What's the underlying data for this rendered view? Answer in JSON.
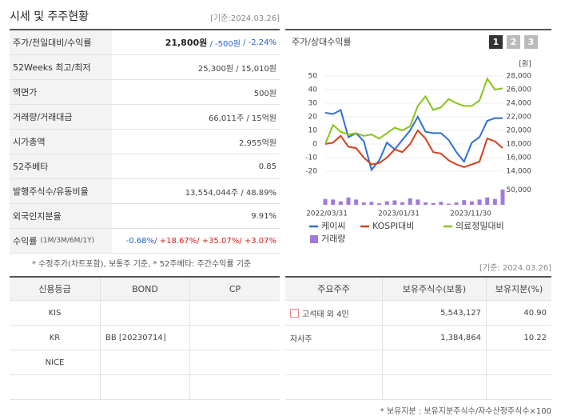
{
  "header": {
    "title": "시세 및 주주현황",
    "date": "[기준:2024.03.26]"
  },
  "price_table": {
    "rows": [
      {
        "label": "주가/전일대비/수익률",
        "parts": [
          {
            "text": "21,800원",
            "color": "#222222",
            "bold": true
          },
          {
            "text": " / -500원",
            "color": "#2460c8"
          },
          {
            "text": " / -2.24%",
            "color": "#2460c8"
          }
        ]
      },
      {
        "label": "52Weeks 최고/최저",
        "parts": [
          {
            "text": "25,300원 / 15,010원",
            "color": "#444444"
          }
        ]
      },
      {
        "label": "액면가",
        "parts": [
          {
            "text": "500원",
            "color": "#444444"
          }
        ]
      },
      {
        "label": "거래량/거래대금",
        "parts": [
          {
            "text": "66,011주 / 15억원",
            "color": "#444444"
          }
        ]
      },
      {
        "label": "시가총액",
        "parts": [
          {
            "text": "2,955억원",
            "color": "#444444"
          }
        ]
      },
      {
        "label": "52주베타",
        "parts": [
          {
            "text": "0.85",
            "color": "#444444"
          }
        ]
      },
      {
        "label": "발행주식수/유동비율",
        "parts": [
          {
            "text": "13,554,044주 / 48.89%",
            "color": "#444444"
          }
        ]
      },
      {
        "label": "외국인지분율",
        "parts": [
          {
            "text": "9.91%",
            "color": "#444444"
          }
        ]
      },
      {
        "label": "수익률",
        "sublabel": "(1M/3M/6M/1Y)",
        "parts": [
          {
            "text": "-0.68%",
            "color": "#2460c8"
          },
          {
            "text": "/ +18.67%",
            "color": "#d02020"
          },
          {
            "text": "/ +35.07%",
            "color": "#d02020"
          },
          {
            "text": "/ +3.07%",
            "color": "#d02020"
          }
        ]
      }
    ]
  },
  "price_footnote": "* 수정주가(차트포함), 보통주 기준, * 52주베타: 주간수익률 기준",
  "chart": {
    "title": "주가/상대수익률",
    "buttons": [
      "1",
      "2",
      "3"
    ],
    "unit": "[원]",
    "ylim": [
      -20,
      50
    ],
    "yticks": [
      50,
      40,
      30,
      20,
      10,
      0,
      -10,
      -20
    ],
    "y2lim": [
      14000,
      28000
    ],
    "y2ticks": [
      {
        "value": 28000,
        "label": "28,000"
      },
      {
        "value": 26000,
        "label": "26,000"
      },
      {
        "value": 24000,
        "label": "24,000"
      },
      {
        "value": 22000,
        "label": "22,000"
      },
      {
        "value": 20000,
        "label": "20,000"
      },
      {
        "value": 18000,
        "label": "18,000"
      },
      {
        "value": 16000,
        "label": "16,000"
      },
      {
        "value": 14000,
        "label": "14,000"
      }
    ],
    "volume_lim": [
      0,
      60000
    ],
    "volume_ticks": [
      {
        "value": 50000,
        "label": "50,000"
      }
    ],
    "x_labels": [
      "2022/03/31",
      "2023/01/31",
      "2023/11/30"
    ],
    "series": [
      {
        "name": "케이씨",
        "color": "#2f6fd6",
        "values": [
          23,
          22,
          25,
          5,
          8,
          2,
          -19,
          -12,
          1,
          -4,
          3,
          10,
          20,
          9,
          8,
          8,
          3,
          -6,
          -13,
          1,
          5,
          17,
          19,
          19
        ]
      },
      {
        "name": "KOSPI대비",
        "color": "#d2401f",
        "values": [
          0,
          1,
          6,
          -2,
          -3,
          -10,
          -15,
          -14,
          -10,
          -4,
          -6,
          0,
          10,
          4,
          -6,
          -7,
          -12,
          -15,
          -17,
          -15,
          -13,
          4,
          2,
          -3
        ]
      },
      {
        "name": "의료정밀대비",
        "color": "#8cc21c",
        "values": [
          0,
          14,
          9,
          7,
          8,
          6,
          7,
          4,
          8,
          12,
          10,
          13,
          28,
          35,
          25,
          27,
          33,
          30,
          28,
          28,
          32,
          48,
          40,
          41
        ]
      }
    ],
    "volume": {
      "name": "거래량",
      "color": "#a07bdc",
      "values": [
        20000,
        18000,
        12000,
        25000,
        18000,
        8000,
        10000,
        5000,
        12000,
        15000,
        9000,
        22000,
        18000,
        8000,
        6000,
        10000,
        4000,
        8000,
        16000,
        12000,
        18000,
        25000,
        20000,
        52000
      ]
    }
  },
  "rating_table": {
    "headers": [
      "신용등급",
      "BOND",
      "CP"
    ],
    "rows": [
      [
        "KIS",
        "",
        ""
      ],
      [
        "KR",
        "BB [20230714]",
        ""
      ],
      [
        "NICE",
        "",
        ""
      ],
      [
        "",
        "",
        ""
      ]
    ]
  },
  "holder_date": "[기준: 2024.03.26]",
  "holder_table": {
    "headers": [
      "주요주주",
      "보유주식수(보통)",
      "보유지분(%)"
    ],
    "rows": [
      [
        "고석태 외 4인",
        "5,543,127",
        "40.90"
      ],
      [
        "자사주",
        "1,384,864",
        "10.22"
      ],
      [
        "",
        "",
        ""
      ],
      [
        "",
        "",
        ""
      ]
    ]
  },
  "holder_footnote": "* 보유지분 : 보유지분주식수/자수산정주식수×100"
}
